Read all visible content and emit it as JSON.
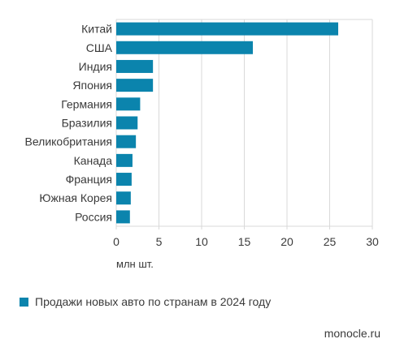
{
  "chart_data": {
    "type": "bar",
    "orientation": "horizontal",
    "categories": [
      "Китай",
      "США",
      "Индия",
      "Япония",
      "Германия",
      "Бразилия",
      "Великобритания",
      "Канада",
      "Франция",
      "Южная Корея",
      "Россия"
    ],
    "series": [
      {
        "name": "Продажи новых авто по странам в 2024 году",
        "values": [
          26.0,
          16.0,
          4.3,
          4.3,
          2.8,
          2.5,
          2.3,
          1.9,
          1.8,
          1.7,
          1.6
        ]
      }
    ],
    "xlabel": "млн шт.",
    "xlim": [
      0,
      30
    ],
    "xticks": [
      "0",
      "5",
      "10",
      "15",
      "20",
      "25",
      "30"
    ],
    "grid": true,
    "legend_position": "bottom-left",
    "bar_color": "#0b84ad",
    "grid_color": "#d9d9d9"
  },
  "source": "monocle.ru"
}
